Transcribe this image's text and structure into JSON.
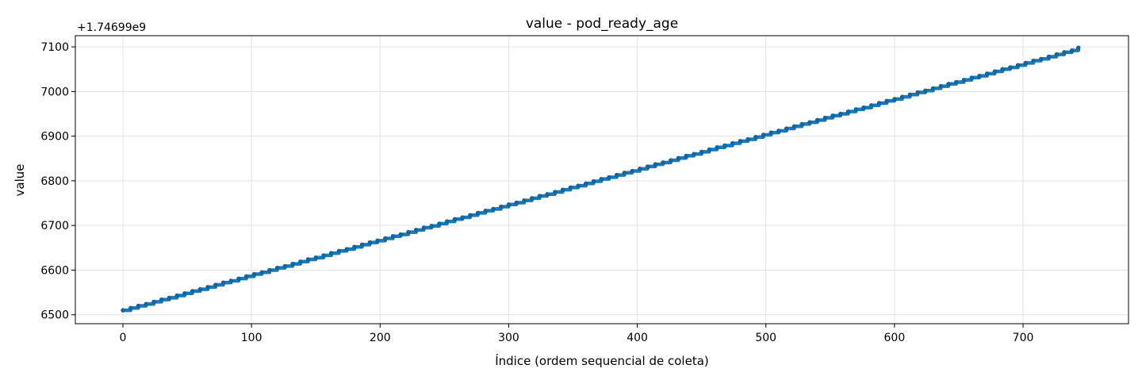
{
  "chart_data": {
    "type": "line",
    "title": "value - pod_ready_age",
    "xlabel": "Índice (ordem sequencial de coleta)",
    "ylabel": "value",
    "offset_label": "+1.74699e9",
    "xlim": [
      -37,
      782
    ],
    "ylim": [
      6480,
      7125
    ],
    "x_ticks": [
      0,
      100,
      200,
      300,
      400,
      500,
      600,
      700
    ],
    "y_ticks": [
      6500,
      6600,
      6700,
      6800,
      6900,
      7000,
      7100
    ],
    "grid": true,
    "line_color": "#1f77b4",
    "marker_color": "#0a6aa8",
    "series": [
      {
        "x_start": 0,
        "x_end": 743,
        "y_start": 6510,
        "y_end": 7098,
        "step_length": 6,
        "step_increment": 4.75,
        "points": [
          [
            0,
            6510
          ],
          [
            6,
            6515
          ],
          [
            12,
            6520
          ],
          [
            18,
            6524
          ],
          [
            24,
            6529
          ],
          [
            30,
            6534
          ],
          [
            36,
            6538
          ],
          [
            42,
            6543
          ],
          [
            48,
            6548
          ],
          [
            54,
            6553
          ],
          [
            60,
            6557
          ],
          [
            66,
            6562
          ],
          [
            72,
            6567
          ],
          [
            78,
            6572
          ],
          [
            84,
            6576
          ],
          [
            90,
            6581
          ],
          [
            96,
            6586
          ],
          [
            102,
            6591
          ],
          [
            108,
            6595
          ],
          [
            114,
            6600
          ],
          [
            120,
            6605
          ],
          [
            126,
            6609
          ],
          [
            132,
            6614
          ],
          [
            138,
            6619
          ],
          [
            144,
            6624
          ],
          [
            150,
            6628
          ],
          [
            156,
            6633
          ],
          [
            162,
            6638
          ],
          [
            168,
            6643
          ],
          [
            174,
            6647
          ],
          [
            180,
            6652
          ],
          [
            186,
            6657
          ],
          [
            192,
            6662
          ],
          [
            198,
            6666
          ],
          [
            204,
            6671
          ],
          [
            210,
            6676
          ],
          [
            216,
            6680
          ],
          [
            222,
            6685
          ],
          [
            228,
            6690
          ],
          [
            234,
            6695
          ],
          [
            240,
            6699
          ],
          [
            246,
            6704
          ],
          [
            252,
            6709
          ],
          [
            258,
            6714
          ],
          [
            264,
            6718
          ],
          [
            270,
            6723
          ],
          [
            276,
            6728
          ],
          [
            282,
            6733
          ],
          [
            288,
            6737
          ],
          [
            294,
            6742
          ],
          [
            300,
            6747
          ],
          [
            306,
            6751
          ],
          [
            312,
            6756
          ],
          [
            318,
            6761
          ],
          [
            324,
            6766
          ],
          [
            330,
            6770
          ],
          [
            336,
            6775
          ],
          [
            342,
            6780
          ],
          [
            348,
            6785
          ],
          [
            354,
            6789
          ],
          [
            360,
            6794
          ],
          [
            366,
            6799
          ],
          [
            372,
            6804
          ],
          [
            378,
            6808
          ],
          [
            384,
            6813
          ],
          [
            390,
            6818
          ],
          [
            396,
            6822
          ],
          [
            402,
            6827
          ],
          [
            408,
            6832
          ],
          [
            414,
            6837
          ],
          [
            420,
            6841
          ],
          [
            426,
            6846
          ],
          [
            432,
            6851
          ],
          [
            438,
            6856
          ],
          [
            444,
            6860
          ],
          [
            450,
            6865
          ],
          [
            456,
            6870
          ],
          [
            462,
            6875
          ],
          [
            468,
            6879
          ],
          [
            474,
            6884
          ],
          [
            480,
            6889
          ],
          [
            486,
            6893
          ],
          [
            492,
            6898
          ],
          [
            498,
            6903
          ],
          [
            504,
            6908
          ],
          [
            510,
            6912
          ],
          [
            516,
            6917
          ],
          [
            522,
            6922
          ],
          [
            528,
            6927
          ],
          [
            534,
            6931
          ],
          [
            540,
            6936
          ],
          [
            546,
            6941
          ],
          [
            552,
            6946
          ],
          [
            558,
            6950
          ],
          [
            564,
            6955
          ],
          [
            570,
            6960
          ],
          [
            576,
            6964
          ],
          [
            582,
            6969
          ],
          [
            588,
            6974
          ],
          [
            594,
            6979
          ],
          [
            600,
            6983
          ],
          [
            606,
            6988
          ],
          [
            612,
            6993
          ],
          [
            618,
            6998
          ],
          [
            624,
            7002
          ],
          [
            630,
            7007
          ],
          [
            636,
            7012
          ],
          [
            642,
            7017
          ],
          [
            648,
            7021
          ],
          [
            654,
            7026
          ],
          [
            660,
            7031
          ],
          [
            666,
            7035
          ],
          [
            672,
            7040
          ],
          [
            678,
            7045
          ],
          [
            684,
            7050
          ],
          [
            690,
            7054
          ],
          [
            696,
            7059
          ],
          [
            702,
            7064
          ],
          [
            708,
            7069
          ],
          [
            714,
            7073
          ],
          [
            720,
            7078
          ],
          [
            726,
            7083
          ],
          [
            732,
            7088
          ],
          [
            738,
            7092
          ],
          [
            743,
            7098
          ]
        ]
      }
    ]
  }
}
